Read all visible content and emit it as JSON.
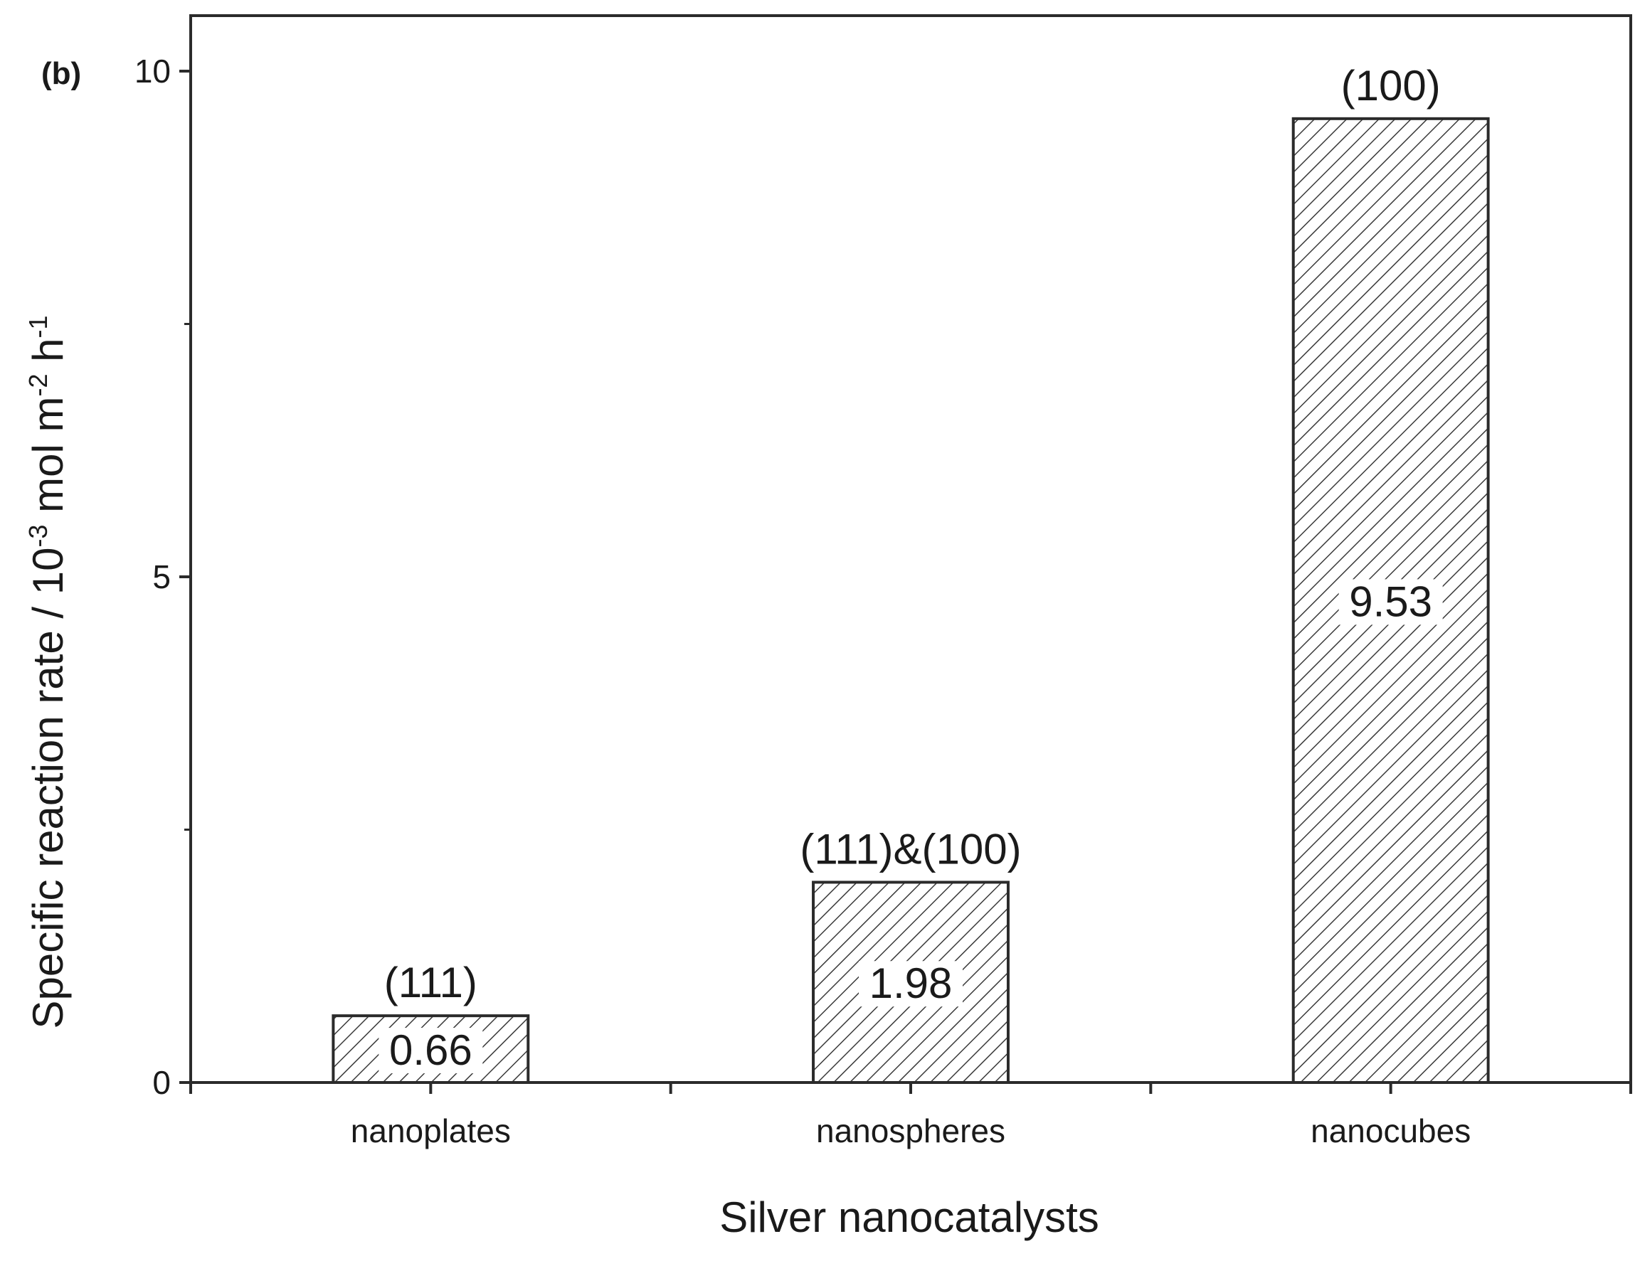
{
  "chart_data": {
    "type": "bar",
    "panel_label": "(b)",
    "title": "",
    "xlabel": "Silver nanocatalysts",
    "ylabel": "Specific reaction rate / 10-3 mol m-2 h-1",
    "ylabel_parts": {
      "main": "Specific reaction rate / 10",
      "exp1": "-3",
      "mid": " mol m",
      "exp2": "-2",
      "mid2": " h",
      "exp3": "-1"
    },
    "categories": [
      "nanoplates",
      "nanospheres",
      "nanocubes"
    ],
    "values": [
      0.66,
      1.98,
      9.53
    ],
    "value_labels": [
      "0.66",
      "1.98",
      "9.53"
    ],
    "facet_labels": [
      "(111)",
      "(111)&(100)",
      "(100)"
    ],
    "ylim": [
      0,
      10
    ],
    "yticks": [
      0,
      5,
      10
    ],
    "ytick_labels": [
      "0",
      "5",
      "10"
    ],
    "grid": false,
    "bar_fill": "hatched",
    "colors": {
      "bar_stroke": "#2b2b2b",
      "hatch": "#3a3a3a",
      "axis": "#2b2b2b"
    }
  }
}
